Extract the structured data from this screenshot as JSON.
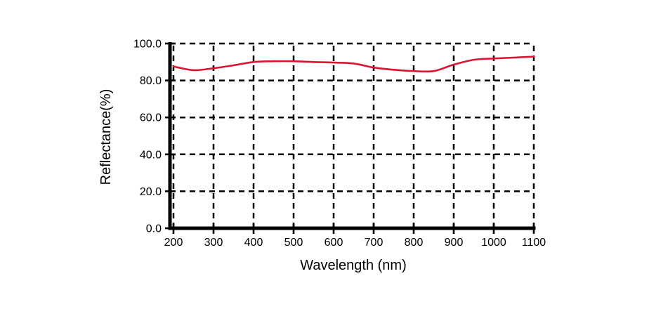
{
  "chart_data": {
    "type": "line",
    "title": "",
    "xlabel": "Wavelength (nm)",
    "ylabel": "Reflectance(%)",
    "xlim": [
      200,
      1100
    ],
    "ylim": [
      0,
      100
    ],
    "x_ticks": [
      200,
      300,
      400,
      500,
      600,
      700,
      800,
      900,
      1000,
      1100
    ],
    "y_ticks": [
      0,
      20,
      40,
      60,
      80,
      100
    ],
    "y_tick_decimals": 1,
    "grid": "dashed-black",
    "legend_position": "none",
    "series": [
      {
        "name": "reflectance",
        "color": "#dd1430",
        "x": [
          200,
          250,
          300,
          350,
          400,
          450,
          500,
          550,
          600,
          650,
          700,
          750,
          800,
          850,
          900,
          950,
          1000,
          1050,
          1100
        ],
        "y": [
          87.6,
          85.6,
          86.6,
          88.2,
          90.0,
          90.4,
          90.4,
          90.0,
          89.7,
          89.2,
          87.0,
          85.8,
          85.1,
          85.1,
          88.6,
          91.2,
          91.9,
          92.4,
          92.9
        ]
      }
    ]
  },
  "colors": {
    "background": "#ffffff",
    "axis": "#000000",
    "grid": "#000000",
    "text": "#000000",
    "line": "#dd1430"
  }
}
